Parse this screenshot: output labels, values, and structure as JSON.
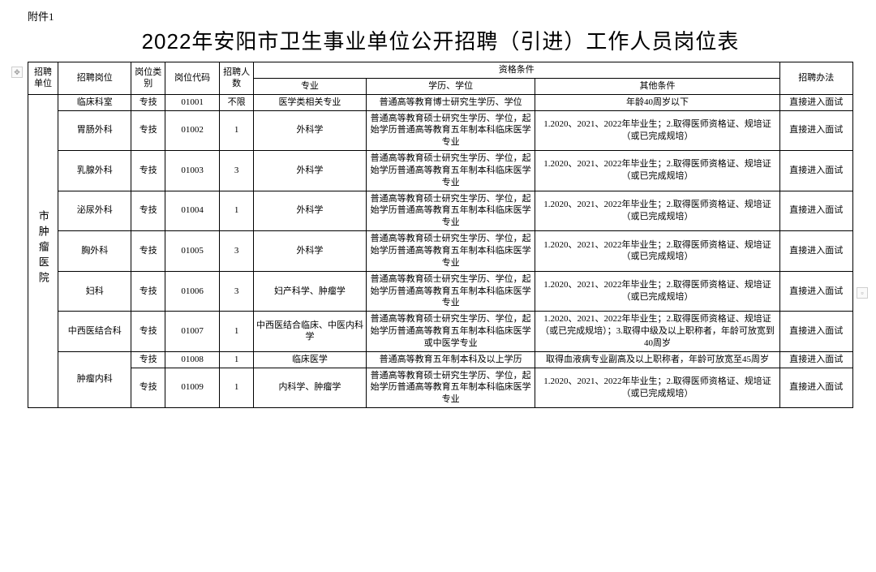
{
  "attachment_label": "附件1",
  "title": "2022年安阳市卫生事业单位公开招聘（引进）工作人员岗位表",
  "header": {
    "unit": "招聘单位",
    "post": "招聘岗位",
    "category": "岗位类别",
    "code": "岗位代码",
    "count": "招聘人数",
    "qualification_group": "资格条件",
    "major": "专业",
    "degree": "学历、学位",
    "other": "其他条件",
    "method": "招聘办法"
  },
  "unit_name": "市肿瘤医院",
  "rows": [
    {
      "post": "临床科室",
      "category": "专技",
      "code": "01001",
      "count": "不限",
      "major": "医学类相关专业",
      "degree": "普通高等教育博士研究生学历、学位",
      "other": "年龄40周岁以下",
      "method": "直接进入面试"
    },
    {
      "post": "胃肠外科",
      "category": "专技",
      "code": "01002",
      "count": "1",
      "major": "外科学",
      "degree": "普通高等教育硕士研究生学历、学位，起始学历普通高等教育五年制本科临床医学专业",
      "other": "1.2020、2021、2022年毕业生；2.取得医师资格证、规培证（或已完成规培）",
      "method": "直接进入面试"
    },
    {
      "post": "乳腺外科",
      "category": "专技",
      "code": "01003",
      "count": "3",
      "major": "外科学",
      "degree": "普通高等教育硕士研究生学历、学位，起始学历普通高等教育五年制本科临床医学专业",
      "other": "1.2020、2021、2022年毕业生；2.取得医师资格证、规培证（或已完成规培）",
      "method": "直接进入面试"
    },
    {
      "post": "泌尿外科",
      "category": "专技",
      "code": "01004",
      "count": "1",
      "major": "外科学",
      "degree": "普通高等教育硕士研究生学历、学位，起始学历普通高等教育五年制本科临床医学专业",
      "other": "1.2020、2021、2022年毕业生；2.取得医师资格证、规培证（或已完成规培）",
      "method": "直接进入面试"
    },
    {
      "post": "胸外科",
      "category": "专技",
      "code": "01005",
      "count": "3",
      "major": "外科学",
      "degree": "普通高等教育硕士研究生学历、学位，起始学历普通高等教育五年制本科临床医学专业",
      "other": "1.2020、2021、2022年毕业生；2.取得医师资格证、规培证（或已完成规培）",
      "method": "直接进入面试"
    },
    {
      "post": "妇科",
      "category": "专技",
      "code": "01006",
      "count": "3",
      "major": "妇产科学、肿瘤学",
      "degree": "普通高等教育硕士研究生学历、学位，起始学历普通高等教育五年制本科临床医学专业",
      "other": "1.2020、2021、2022年毕业生；2.取得医师资格证、规培证（或已完成规培）",
      "method": "直接进入面试"
    },
    {
      "post": "中西医结合科",
      "category": "专技",
      "code": "01007",
      "count": "1",
      "major": "中西医结合临床、中医内科学",
      "degree": "普通高等教育硕士研究生学历、学位，起始学历普通高等教育五年制本科临床医学或中医学专业",
      "other": "1.2020、2021、2022年毕业生；2.取得医师资格证、规培证（或已完成规培）；3.取得中级及以上职称者，年龄可放宽到40周岁",
      "method": "直接进入面试"
    },
    {
      "post_rowspan": 2,
      "post": "肿瘤内科",
      "category": "专技",
      "code": "01008",
      "count": "1",
      "major": "临床医学",
      "degree": "普通高等教育五年制本科及以上学历",
      "other": "取得血液病专业副高及以上职称者，年龄可放宽至45周岁",
      "method": "直接进入面试"
    },
    {
      "post_skip": true,
      "category": "专技",
      "code": "01009",
      "count": "1",
      "major": "内科学、肿瘤学",
      "degree": "普通高等教育硕士研究生学历、学位，起始学历普通高等教育五年制本科临床医学专业",
      "other": "1.2020、2021、2022年毕业生；2.取得医师资格证、规培证（或已完成规培）",
      "method": "直接进入面试"
    }
  ]
}
